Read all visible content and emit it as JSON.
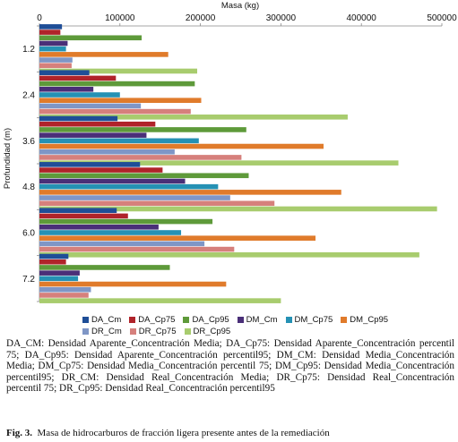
{
  "chart_data": {
    "type": "bar",
    "orientation": "horizontal",
    "title": "Masa (kg)",
    "xlabel": "Masa (kg)",
    "ylabel": "Profundidad (m)",
    "xlim": [
      0,
      500000
    ],
    "xticks": [
      0,
      100000,
      200000,
      300000,
      400000,
      500000
    ],
    "categories": [
      "1.2",
      "2.4",
      "3.6",
      "4.8",
      "6.0",
      "7.2"
    ],
    "series": [
      {
        "name": "DA_Cm",
        "color": "#1f4e97",
        "values": [
          28000,
          62000,
          97000,
          125000,
          96000,
          36000
        ]
      },
      {
        "name": "DA_Cp75",
        "color": "#b0232a",
        "values": [
          26000,
          95000,
          144000,
          153000,
          110000,
          33000
        ]
      },
      {
        "name": "DA_Cp95",
        "color": "#5e9a3a",
        "values": [
          127000,
          193000,
          257000,
          260000,
          215000,
          162000
        ]
      },
      {
        "name": "DM_Cm",
        "color": "#4a2f78",
        "values": [
          35000,
          67000,
          133000,
          181000,
          148000,
          50000
        ]
      },
      {
        "name": "DM_Cp75",
        "color": "#2591b4",
        "values": [
          33000,
          100000,
          198000,
          222000,
          176000,
          48000
        ]
      },
      {
        "name": "DM_Cp95",
        "color": "#e07b2b",
        "values": [
          160000,
          201000,
          353000,
          375000,
          343000,
          232000
        ]
      },
      {
        "name": "DR_Cm",
        "color": "#7f96c6",
        "values": [
          41000,
          126000,
          168000,
          237000,
          205000,
          64000
        ]
      },
      {
        "name": "DR_Cp75",
        "color": "#d6807c",
        "values": [
          40000,
          188000,
          251000,
          292000,
          242000,
          61000
        ]
      },
      {
        "name": "DR_Cp95",
        "color": "#a8cc6e",
        "values": [
          196000,
          383000,
          446000,
          494000,
          472000,
          300000
        ]
      }
    ],
    "legend_position": "bottom",
    "grid": false
  },
  "legend_title": "",
  "caption": "DA_CM: Densidad Aparente_Concentración Media; DA_Cp75: Densidad Aparente_Concentración percentil 75; DA_Cp95: Densidad Aparente_Concentración percentil95; DM_CM: Densidad Media_Concentración Media; DM_Cp75: Densidad Media_Concentración percentil 75; DM_Cp95: Densidad Media_Concentración percentil95; DR_CM: Densidad Real_Concentración Media; DR_Cp75: Densidad Real_Concentración percentil 75; DR_Cp95: Densidad Real_Concentración percentil95",
  "figure": {
    "label": "Fig. 3.",
    "text": "Masa de hidrocarburos de fracción ligera presente antes de la remediación"
  }
}
